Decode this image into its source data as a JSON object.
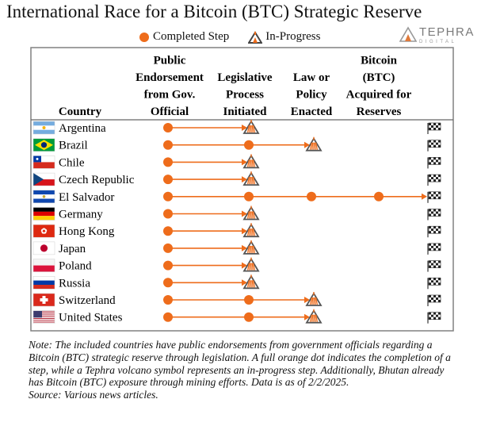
{
  "title": "International Race for a Bitcoin (BTC) Strategic Reserve",
  "legend": {
    "completed": "Completed Step",
    "in_progress": "In-Progress"
  },
  "brand": {
    "name": "TEPHRA",
    "sub": "DIGITAL"
  },
  "colors": {
    "orange": "#ee6c1b",
    "volcano": "#555555",
    "border": "#808080"
  },
  "chart_data": {
    "type": "table",
    "columns": [
      "Country",
      "Public Endorsement from Gov. Official",
      "Legislative Process Initiated",
      "Law or Policy Enacted",
      "Bitcoin (BTC) Acquired for Reserves"
    ],
    "column_header_lines": [
      [
        "Country"
      ],
      [
        "Public",
        "Endorsement",
        "from Gov.",
        "Official"
      ],
      [
        "Legislative",
        "Process",
        "Initiated"
      ],
      [
        "Law or",
        "Policy",
        "Enacted"
      ],
      [
        "Bitcoin",
        "(BTC)",
        "Acquired for",
        "Reserves"
      ]
    ],
    "status_note": "completed = number of completed steps; in_progress = step number currently in progress (0 = none)",
    "rows": [
      {
        "country": "Argentina",
        "flag": "argentina",
        "completed": 1,
        "in_progress": 2
      },
      {
        "country": "Brazil",
        "flag": "brazil",
        "completed": 2,
        "in_progress": 3
      },
      {
        "country": "Chile",
        "flag": "chile",
        "completed": 1,
        "in_progress": 2
      },
      {
        "country": "Czech Republic",
        "flag": "czech",
        "completed": 1,
        "in_progress": 2
      },
      {
        "country": "El Salvador",
        "flag": "el-salvador",
        "completed": 4,
        "in_progress": 0
      },
      {
        "country": "Germany",
        "flag": "germany",
        "completed": 1,
        "in_progress": 2
      },
      {
        "country": "Hong Kong",
        "flag": "hong-kong",
        "completed": 1,
        "in_progress": 2
      },
      {
        "country": "Japan",
        "flag": "japan",
        "completed": 1,
        "in_progress": 2
      },
      {
        "country": "Poland",
        "flag": "poland",
        "completed": 1,
        "in_progress": 2
      },
      {
        "country": "Russia",
        "flag": "russia",
        "completed": 1,
        "in_progress": 2
      },
      {
        "country": "Switzerland",
        "flag": "switzerland",
        "completed": 2,
        "in_progress": 3
      },
      {
        "country": "United States",
        "flag": "usa",
        "completed": 2,
        "in_progress": 3
      }
    ],
    "finish_marker": "checkered-flag"
  },
  "note": "Note: The included countries have public endorsements from government officials regarding a Bitcoin (BTC) strategic reserve through legislation. A full orange dot indicates the completion of a step, while a Tephra volcano symbol represents an in-progress step. Additionally, Bhutan already has Bitcoin (BTC) exposure through mining efforts. Data is as of 2/2/2025.",
  "source": "Source: Various news articles."
}
